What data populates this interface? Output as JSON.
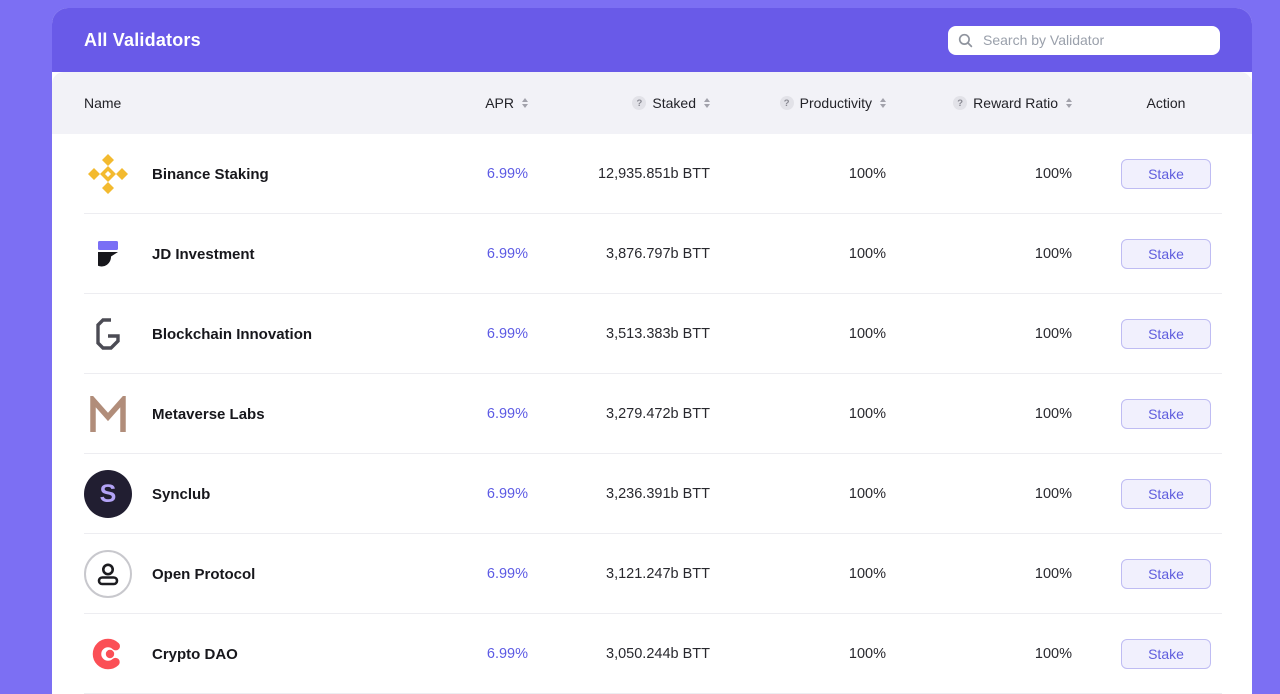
{
  "colors": {
    "page_background": "#7C6FF3",
    "panel_header": "#695AE8",
    "table_header_bg": "#F2F2F7",
    "apr_text": "#5C5AE4",
    "stake_button_bg": "#F1F0FD",
    "stake_button_border": "#BFBCF3",
    "stake_button_text": "#605EDE",
    "binance_gold": "#F3BA2F",
    "crypto_dao_red": "#FB4F56"
  },
  "panel": {
    "title": "All Validators",
    "search": {
      "placeholder": "Search by Validator",
      "value": "",
      "icon": "search-icon"
    }
  },
  "table": {
    "columns": [
      {
        "label": "Name",
        "sortable": false,
        "help": false
      },
      {
        "label": "APR",
        "sortable": true,
        "help": false
      },
      {
        "label": "Staked",
        "sortable": true,
        "help": true
      },
      {
        "label": "Productivity",
        "sortable": true,
        "help": true
      },
      {
        "label": "Reward Ratio",
        "sortable": true,
        "help": true
      },
      {
        "label": "Action",
        "sortable": false,
        "help": false
      }
    ],
    "action_label": "Stake",
    "rows": [
      {
        "icon": "binance-icon",
        "name": "Binance Staking",
        "apr": "6.99%",
        "staked": "12,935.851b BTT",
        "productivity": "100%",
        "reward_ratio": "100%"
      },
      {
        "icon": "jd-investment-icon",
        "name": "JD Investment",
        "apr": "6.99%",
        "staked": "3,876.797b BTT",
        "productivity": "100%",
        "reward_ratio": "100%"
      },
      {
        "icon": "blockchain-innovation-icon",
        "name": "Blockchain Innovation",
        "apr": "6.99%",
        "staked": "3,513.383b BTT",
        "productivity": "100%",
        "reward_ratio": "100%"
      },
      {
        "icon": "metaverse-labs-icon",
        "name": "Metaverse Labs",
        "apr": "6.99%",
        "staked": "3,279.472b BTT",
        "productivity": "100%",
        "reward_ratio": "100%"
      },
      {
        "icon": "synclub-icon",
        "name": "Synclub",
        "apr": "6.99%",
        "staked": "3,236.391b BTT",
        "productivity": "100%",
        "reward_ratio": "100%"
      },
      {
        "icon": "open-protocol-icon",
        "name": "Open Protocol",
        "apr": "6.99%",
        "staked": "3,121.247b BTT",
        "productivity": "100%",
        "reward_ratio": "100%"
      },
      {
        "icon": "crypto-dao-icon",
        "name": "Crypto DAO",
        "apr": "6.99%",
        "staked": "3,050.244b BTT",
        "productivity": "100%",
        "reward_ratio": "100%"
      }
    ]
  }
}
